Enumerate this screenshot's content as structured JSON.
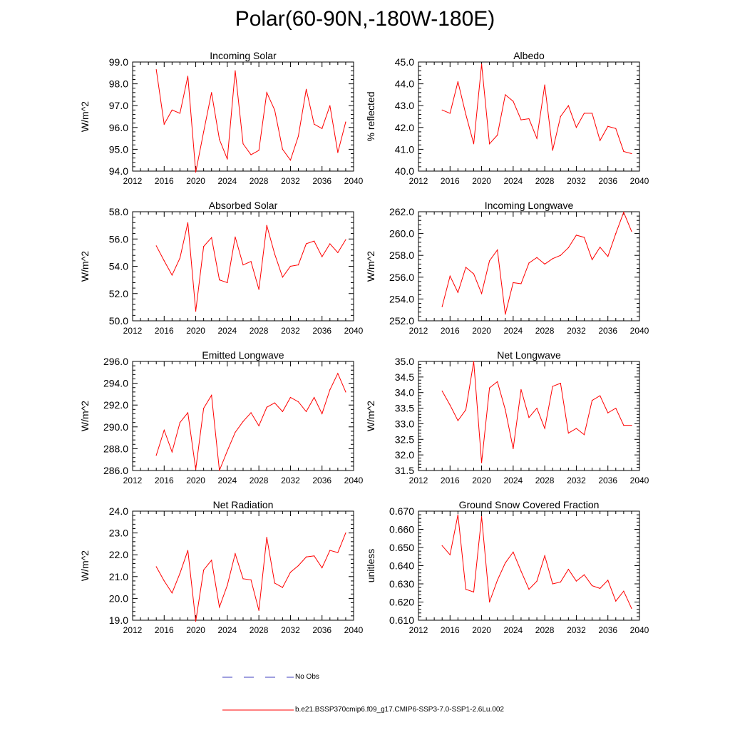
{
  "title": "Polar(60-90N,-180W-180E)",
  "legend": {
    "items": [
      {
        "label": "No Obs",
        "color": "#3f3fbf",
        "style": "dashed"
      },
      {
        "label": "b.e21.BSSP370cmip6.f09_g17.CMIP6-SSP3-7.0-SSP1-2.6Lu.002",
        "color": "#ff0000",
        "style": "solid"
      }
    ]
  },
  "chart_data": [
    {
      "type": "line",
      "title": "Incoming Solar",
      "ylabel": "W/m^2",
      "xlabel": "",
      "xlim": [
        2012,
        2040
      ],
      "ylim": [
        94,
        99
      ],
      "xticks": [
        "2012",
        "2016",
        "2020",
        "2024",
        "2028",
        "2032",
        "2036",
        "2040"
      ],
      "yticks": [
        "94.0",
        "95.0",
        "96.0",
        "97.0",
        "98.0",
        "99.0"
      ],
      "series": [
        {
          "color": "#ff0000",
          "x": [
            2015,
            2016,
            2017,
            2018,
            2019,
            2020,
            2021,
            2022,
            2023,
            2024,
            2025,
            2026,
            2027,
            2028,
            2029,
            2030,
            2031,
            2032,
            2033,
            2034,
            2035,
            2036,
            2037,
            2038,
            2039
          ],
          "values": [
            98.65,
            96.15,
            96.8,
            96.65,
            98.35,
            93.95,
            95.8,
            97.6,
            95.45,
            94.55,
            98.6,
            95.25,
            94.75,
            94.95,
            97.6,
            96.8,
            95.0,
            94.5,
            95.6,
            97.75,
            96.15,
            95.95,
            97.0,
            94.85,
            96.25
          ]
        }
      ]
    },
    {
      "type": "line",
      "title": "Albedo",
      "ylabel": "% reflected",
      "xlabel": "",
      "xlim": [
        2012,
        2040
      ],
      "ylim": [
        40,
        45
      ],
      "xticks": [
        "2012",
        "2016",
        "2020",
        "2024",
        "2028",
        "2032",
        "2036",
        "2040"
      ],
      "yticks": [
        "40.0",
        "41.0",
        "42.0",
        "43.0",
        "44.0",
        "45.0"
      ],
      "series": [
        {
          "color": "#ff0000",
          "x": [
            2015,
            2016,
            2017,
            2018,
            2019,
            2020,
            2021,
            2022,
            2023,
            2024,
            2025,
            2026,
            2027,
            2028,
            2029,
            2030,
            2031,
            2032,
            2033,
            2034,
            2035,
            2036,
            2037,
            2038,
            2039
          ],
          "values": [
            42.8,
            42.65,
            44.1,
            42.6,
            41.25,
            44.9,
            41.25,
            41.65,
            43.5,
            43.2,
            42.35,
            42.4,
            41.5,
            43.95,
            40.95,
            42.5,
            43.0,
            42.0,
            42.65,
            42.65,
            41.4,
            42.05,
            41.95,
            40.9,
            40.8
          ]
        }
      ]
    },
    {
      "type": "line",
      "title": "Absorbed Solar",
      "ylabel": "W/m^2",
      "xlabel": "",
      "xlim": [
        2012,
        2040
      ],
      "ylim": [
        50,
        58
      ],
      "xticks": [
        "2012",
        "2016",
        "2020",
        "2024",
        "2028",
        "2032",
        "2036",
        "2040"
      ],
      "yticks": [
        "50.0",
        "52.0",
        "54.0",
        "56.0",
        "58.0"
      ],
      "series": [
        {
          "color": "#ff0000",
          "x": [
            2015,
            2016,
            2017,
            2018,
            2019,
            2020,
            2021,
            2022,
            2023,
            2024,
            2025,
            2026,
            2027,
            2028,
            2029,
            2030,
            2031,
            2032,
            2033,
            2034,
            2035,
            2036,
            2037,
            2038,
            2039
          ],
          "values": [
            55.5,
            54.4,
            53.35,
            54.6,
            57.2,
            50.7,
            55.45,
            56.1,
            53.0,
            52.8,
            56.15,
            54.1,
            54.35,
            52.3,
            57.0,
            54.9,
            53.2,
            54.0,
            54.1,
            55.65,
            55.85,
            54.7,
            55.65,
            55.0,
            55.95
          ]
        }
      ]
    },
    {
      "type": "line",
      "title": "Incoming Longwave",
      "ylabel": "W/m^2",
      "xlabel": "",
      "xlim": [
        2012,
        2040
      ],
      "ylim": [
        252,
        262
      ],
      "xticks": [
        "2012",
        "2016",
        "2020",
        "2024",
        "2028",
        "2032",
        "2036",
        "2040"
      ],
      "yticks": [
        "252.0",
        "254.0",
        "256.0",
        "258.0",
        "260.0",
        "262.0"
      ],
      "series": [
        {
          "color": "#ff0000",
          "x": [
            2015,
            2016,
            2017,
            2018,
            2019,
            2020,
            2021,
            2022,
            2023,
            2024,
            2025,
            2026,
            2027,
            2028,
            2029,
            2030,
            2031,
            2032,
            2033,
            2034,
            2035,
            2036,
            2037,
            2038,
            2039
          ],
          "values": [
            253.3,
            256.1,
            254.6,
            256.9,
            256.3,
            254.5,
            257.5,
            258.5,
            252.6,
            255.5,
            255.4,
            257.3,
            257.8,
            257.2,
            257.7,
            258.0,
            258.7,
            259.85,
            259.65,
            257.6,
            258.75,
            257.9,
            260.0,
            261.95,
            260.2
          ]
        }
      ]
    },
    {
      "type": "line",
      "title": "Emitted Longwave",
      "ylabel": "W/m^2",
      "xlabel": "",
      "xlim": [
        2012,
        2040
      ],
      "ylim": [
        286,
        296
      ],
      "xticks": [
        "2012",
        "2016",
        "2020",
        "2024",
        "2028",
        "2032",
        "2036",
        "2040"
      ],
      "yticks": [
        "286.0",
        "288.0",
        "290.0",
        "292.0",
        "294.0",
        "296.0"
      ],
      "series": [
        {
          "color": "#ff0000",
          "x": [
            2015,
            2016,
            2017,
            2018,
            2019,
            2020,
            2021,
            2022,
            2023,
            2024,
            2025,
            2026,
            2027,
            2028,
            2029,
            2030,
            2031,
            2032,
            2033,
            2034,
            2035,
            2036,
            2037,
            2038,
            2039
          ],
          "values": [
            287.4,
            289.7,
            287.7,
            290.4,
            291.3,
            286.1,
            291.7,
            292.9,
            286.0,
            287.8,
            289.5,
            290.5,
            291.3,
            290.1,
            291.8,
            292.2,
            291.4,
            292.7,
            292.3,
            291.4,
            292.7,
            291.2,
            293.4,
            294.9,
            293.2
          ]
        }
      ]
    },
    {
      "type": "line",
      "title": "Net Longwave",
      "ylabel": "W/m^2",
      "xlabel": "",
      "xlim": [
        2012,
        2040
      ],
      "ylim": [
        31.5,
        35
      ],
      "xticks": [
        "2012",
        "2016",
        "2020",
        "2024",
        "2028",
        "2032",
        "2036",
        "2040"
      ],
      "yticks": [
        "31.5",
        "32.0",
        "32.5",
        "33.0",
        "33.5",
        "34.0",
        "34.5",
        "35.0"
      ],
      "series": [
        {
          "color": "#ff0000",
          "x": [
            2015,
            2016,
            2017,
            2018,
            2019,
            2020,
            2021,
            2022,
            2023,
            2024,
            2025,
            2026,
            2027,
            2028,
            2029,
            2030,
            2031,
            2032,
            2033,
            2034,
            2035,
            2036,
            2037,
            2038,
            2039
          ],
          "values": [
            34.05,
            33.6,
            33.1,
            33.45,
            35.0,
            31.75,
            34.15,
            34.35,
            33.45,
            32.2,
            34.1,
            33.2,
            33.5,
            32.85,
            34.2,
            34.3,
            32.7,
            32.85,
            32.65,
            33.75,
            33.9,
            33.35,
            33.5,
            32.95,
            32.95
          ]
        }
      ]
    },
    {
      "type": "line",
      "title": "Net Radiation",
      "ylabel": "W/m^2",
      "xlabel": "",
      "xlim": [
        2012,
        2040
      ],
      "ylim": [
        19,
        24
      ],
      "xticks": [
        "2012",
        "2016",
        "2020",
        "2024",
        "2028",
        "2032",
        "2036",
        "2040"
      ],
      "yticks": [
        "19.0",
        "20.0",
        "21.0",
        "22.0",
        "23.0",
        "24.0"
      ],
      "series": [
        {
          "color": "#ff0000",
          "x": [
            2015,
            2016,
            2017,
            2018,
            2019,
            2020,
            2021,
            2022,
            2023,
            2024,
            2025,
            2026,
            2027,
            2028,
            2029,
            2030,
            2031,
            2032,
            2033,
            2034,
            2035,
            2036,
            2037,
            2038,
            2039
          ],
          "values": [
            21.45,
            20.8,
            20.25,
            21.15,
            22.2,
            18.95,
            21.3,
            21.75,
            19.6,
            20.6,
            22.05,
            20.9,
            20.85,
            19.45,
            22.8,
            20.7,
            20.5,
            21.2,
            21.5,
            21.9,
            21.95,
            21.4,
            22.2,
            22.1,
            23.0
          ]
        }
      ]
    },
    {
      "type": "line",
      "title": "Ground Snow Covered Fraction",
      "ylabel": "unitless",
      "xlabel": "",
      "xlim": [
        2012,
        2040
      ],
      "ylim": [
        0.61,
        0.67
      ],
      "xticks": [
        "2012",
        "2016",
        "2020",
        "2024",
        "2028",
        "2032",
        "2036",
        "2040"
      ],
      "yticks": [
        "0.610",
        "0.620",
        "0.630",
        "0.640",
        "0.650",
        "0.660",
        "0.670"
      ],
      "series": [
        {
          "color": "#ff0000",
          "x": [
            2015,
            2016,
            2017,
            2018,
            2019,
            2020,
            2021,
            2022,
            2023,
            2024,
            2025,
            2026,
            2027,
            2028,
            2029,
            2030,
            2031,
            2032,
            2033,
            2034,
            2035,
            2036,
            2037,
            2038,
            2039
          ],
          "values": [
            0.651,
            0.646,
            0.668,
            0.627,
            0.6255,
            0.667,
            0.62,
            0.632,
            0.6415,
            0.6475,
            0.637,
            0.627,
            0.6315,
            0.6455,
            0.63,
            0.631,
            0.638,
            0.6315,
            0.635,
            0.629,
            0.6275,
            0.632,
            0.6205,
            0.626,
            0.6165
          ]
        }
      ]
    }
  ]
}
